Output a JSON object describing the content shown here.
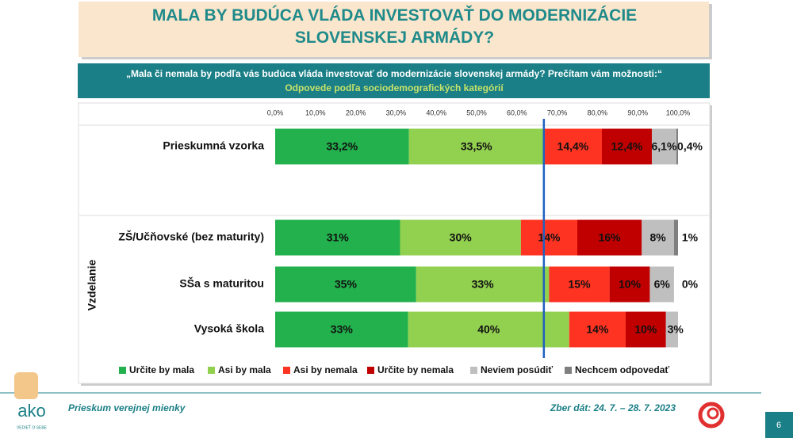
{
  "header": {
    "title": "MALA BY BUDÚCA VLÁDA INVESTOVAŤ DO MODERNIZÁCIE SLOVENSKEJ ARMÁDY?",
    "question": "„Mala či nemala by podľa vás budúca vláda investovať do modernizácie slovenskej armády? Prečítam vám možnosti:“",
    "subtitle": "Odpovede podľa sociodemografických kategórií"
  },
  "chart_data": {
    "type": "stacked_barh",
    "categories": [
      "Prieskumná vzorka",
      "ZŠ/Učňovské (bez maturity)",
      "SŠa s maturitou",
      "Vysoká škola"
    ],
    "group_label": "Vzdelanie",
    "xlim": [
      0,
      100
    ],
    "xticks": [
      {
        "value": 0,
        "label": "0,0%"
      },
      {
        "value": 10,
        "label": "10,0%"
      },
      {
        "value": 20,
        "label": "20,0%"
      },
      {
        "value": 30,
        "label": "30,0%"
      },
      {
        "value": 40,
        "label": "40,0%"
      },
      {
        "value": 50,
        "label": "50,0%"
      },
      {
        "value": 60,
        "label": "60,0%"
      },
      {
        "value": 70,
        "label": "70,0%"
      },
      {
        "value": 80,
        "label": "80,0%"
      },
      {
        "value": 90,
        "label": "90,0%"
      },
      {
        "value": 100,
        "label": "100,0%"
      }
    ],
    "grid": false,
    "reference_line": 66.7,
    "reference_color": "#1f5fbf",
    "legend": "bottom",
    "series": [
      {
        "name": "Určite by mala",
        "color": "#22b14c",
        "values": [
          33.2,
          31,
          35,
          33
        ],
        "value_labels": [
          "33,2%",
          "31%",
          "35%",
          "33%"
        ]
      },
      {
        "name": "Asi by mala",
        "color": "#92d050",
        "values": [
          33.5,
          30,
          33,
          40
        ],
        "value_labels": [
          "33,5%",
          "30%",
          "33%",
          "40%"
        ]
      },
      {
        "name": "Asi by nemala",
        "color": "#ff3322",
        "values": [
          14.4,
          14,
          15,
          14
        ],
        "value_labels": [
          "14,4%",
          "14%",
          "15%",
          "14%"
        ]
      },
      {
        "name": "Určite by nemala",
        "color": "#c00000",
        "values": [
          12.4,
          16,
          10,
          10
        ],
        "value_labels": [
          "12,4%",
          "16%",
          "10%",
          "10%"
        ]
      },
      {
        "name": "Neviem posúdiť",
        "color": "#bfbfbf",
        "values": [
          6.1,
          8,
          6,
          3
        ],
        "value_labels": [
          "6,1%",
          "8%",
          "6%",
          "3%"
        ]
      },
      {
        "name": "Nechcem odpovedať",
        "color": "#7f7f7f",
        "values": [
          0.4,
          1,
          0,
          0
        ],
        "value_labels": [
          "0,4%",
          "1%",
          "0%",
          null
        ]
      }
    ]
  },
  "footer": {
    "left": "Prieskum verejnej mienky",
    "right": "Zber dát: 24. 7. – 28. 7. 2023",
    "page": "6",
    "logo": "ako",
    "tagline": "VEDIEŤ O SEBE"
  }
}
